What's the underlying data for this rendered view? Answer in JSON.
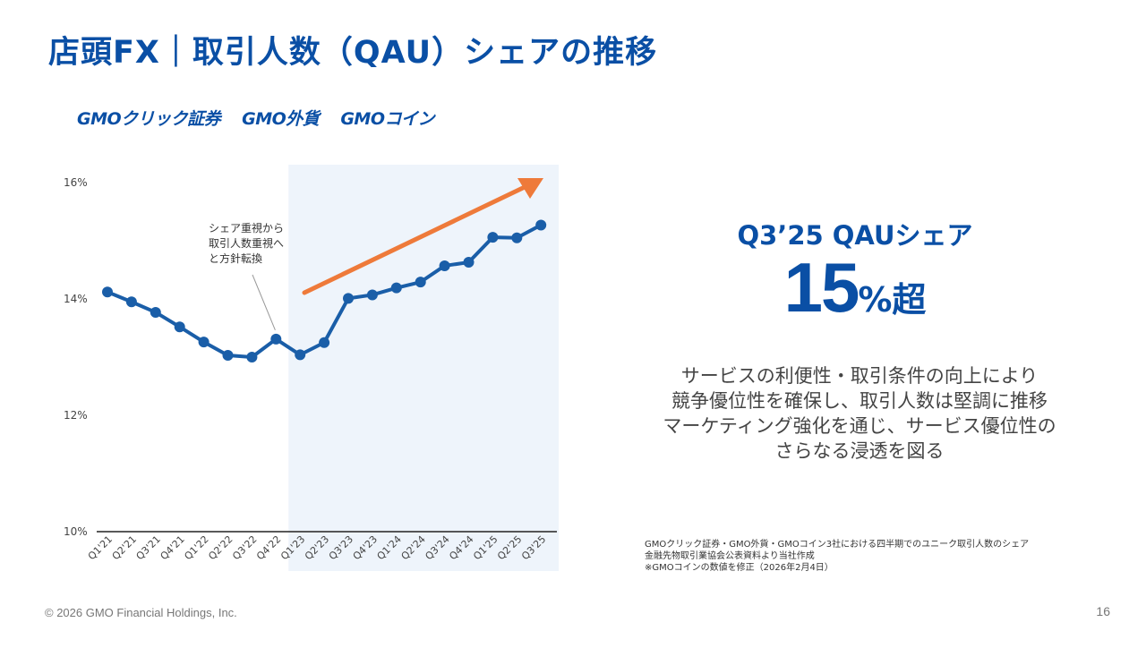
{
  "page": {
    "title": "店頭FX｜取引人数（QAU）シェアの推移",
    "copyright": "© 2026 GMO Financial Holdings, Inc.",
    "page_number": "16"
  },
  "logos": [
    "GMOクリック証券",
    "GMO外貨",
    "GMOコイン"
  ],
  "colors": {
    "brand": "#0a4fa5",
    "line": "#1a5ea8",
    "arrow": "#ee7a3a",
    "highlight": "#eef4fb"
  },
  "chart_data": {
    "type": "line",
    "categories": [
      "Q1'21",
      "Q2'21",
      "Q3'21",
      "Q4'21",
      "Q1'22",
      "Q2'22",
      "Q3'22",
      "Q4'22",
      "Q1'23",
      "Q2'23",
      "Q3'23",
      "Q4'23",
      "Q1'24",
      "Q2'24",
      "Q3'24",
      "Q4'24",
      "Q1'25",
      "Q2'25",
      "Q3'25"
    ],
    "series": [
      {
        "name": "QAUシェア",
        "values": [
          14.12,
          13.95,
          13.77,
          13.52,
          13.26,
          13.03,
          13.0,
          13.31,
          13.04,
          13.25,
          14.01,
          14.07,
          14.19,
          14.29,
          14.57,
          14.63,
          15.06,
          15.05,
          15.27
        ]
      }
    ],
    "ylim": [
      10,
      16.3
    ],
    "yticks": [
      10,
      12,
      14,
      16
    ],
    "ytick_labels": [
      "10%",
      "12%",
      "14%",
      "16%"
    ],
    "highlight_from": "Q1'23",
    "annotation": [
      "シェア重視から",
      "取引人数重視へ",
      "と方針転換"
    ],
    "annotation_category": "Q3'22",
    "trend_arrow": true
  },
  "kpi": {
    "label": "Q3’25 QAUシェア",
    "value": "15",
    "unit": "%超"
  },
  "description": [
    "サービスの利便性・取引条件の向上により",
    "競争優位性を確保し、取引人数は堅調に推移",
    "マーケティング強化を通じ、サービス優位性の",
    "さらなる浸透を図る"
  ],
  "notes": [
    "GMOクリック証券・GMO外貨・GMOコイン3社における四半期でのユニーク取引人数のシェア",
    "金融先物取引業協会公表資料より当社作成",
    "※GMOコインの数値を修正（2026年2月4日）"
  ]
}
